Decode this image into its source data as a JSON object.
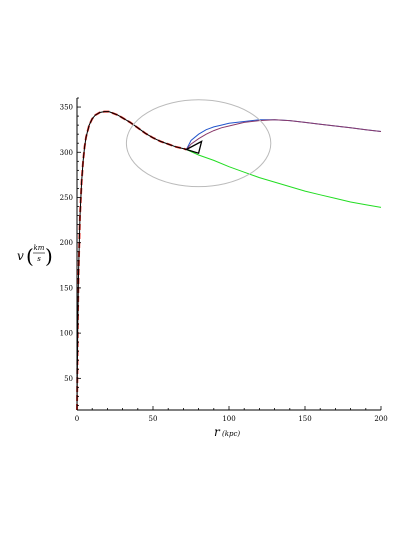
{
  "chart_data": {
    "type": "line",
    "title": "",
    "xlabel": {
      "symbol": "r",
      "unit": "(kpc)"
    },
    "ylabel": {
      "symbol": "v",
      "unit_num": "km",
      "unit_den": "s"
    },
    "xlim": [
      0,
      200
    ],
    "ylim": [
      15,
      360
    ],
    "xticks": [
      0,
      50,
      100,
      150,
      200
    ],
    "yticks": [
      50,
      100,
      150,
      200,
      250,
      300,
      350
    ],
    "grid": false,
    "legend": "none",
    "series": [
      {
        "color": "#e8312a",
        "style": "dashed",
        "x": [
          0,
          0.5,
          1,
          2,
          3,
          4,
          5,
          6,
          8,
          10,
          12,
          15,
          18,
          21,
          24,
          27,
          30,
          35,
          40,
          45,
          50,
          55,
          60,
          65,
          70,
          72
        ],
        "y": [
          15,
          110,
          165,
          230,
          267,
          290,
          306,
          317,
          330,
          337,
          341,
          344,
          345,
          345,
          343,
          341,
          338,
          333,
          327,
          321,
          316,
          312,
          309,
          306,
          304,
          303
        ]
      },
      {
        "color": "#000000",
        "style": "solid",
        "x": [
          0,
          0.5,
          1,
          2,
          3,
          4,
          5,
          6,
          8,
          10,
          12,
          15,
          18,
          21,
          24,
          27,
          30,
          35,
          40,
          45,
          50,
          55,
          60,
          65,
          70,
          72
        ],
        "y": [
          15,
          110,
          165,
          230,
          267,
          290,
          306,
          317,
          330,
          337,
          341,
          344,
          345,
          345,
          343,
          341,
          338,
          333,
          327,
          321,
          316,
          312,
          309,
          306,
          304,
          303
        ]
      },
      {
        "color": "#22dd22",
        "style": "solid",
        "x": [
          72,
          80,
          90,
          100,
          110,
          120,
          130,
          140,
          150,
          160,
          170,
          180,
          190,
          200
        ],
        "y": [
          303,
          297,
          291,
          284,
          278,
          272,
          267,
          262,
          257,
          253,
          249,
          245,
          242,
          239
        ]
      },
      {
        "color": "#2255cc",
        "style": "solid",
        "x": [
          72,
          75,
          80,
          85,
          90,
          95,
          100,
          110,
          120,
          130,
          140,
          150,
          160,
          170,
          180,
          190,
          200
        ],
        "y": [
          303,
          313,
          320,
          325,
          328,
          330,
          332,
          334,
          336,
          336,
          335,
          333,
          331,
          329,
          327,
          325,
          323
        ]
      },
      {
        "color": "#8a3a6a",
        "style": "solid",
        "x": [
          72,
          75,
          80,
          85,
          90,
          95,
          100,
          110,
          120,
          130,
          140,
          150,
          160,
          170,
          180,
          190,
          200
        ],
        "y": [
          303,
          309,
          315,
          320,
          324,
          327,
          329,
          333,
          335,
          336,
          335,
          333,
          331,
          329,
          327,
          325,
          323
        ]
      }
    ],
    "annotations": {
      "ellipse": {
        "cx": 80,
        "cy": 310,
        "rx": 47.5,
        "ry": 48,
        "color": "#bbbbbb"
      },
      "triangle": {
        "points": [
          [
            72,
            303
          ],
          [
            82,
            312
          ],
          [
            80,
            299
          ]
        ],
        "color": "#000000"
      }
    }
  }
}
